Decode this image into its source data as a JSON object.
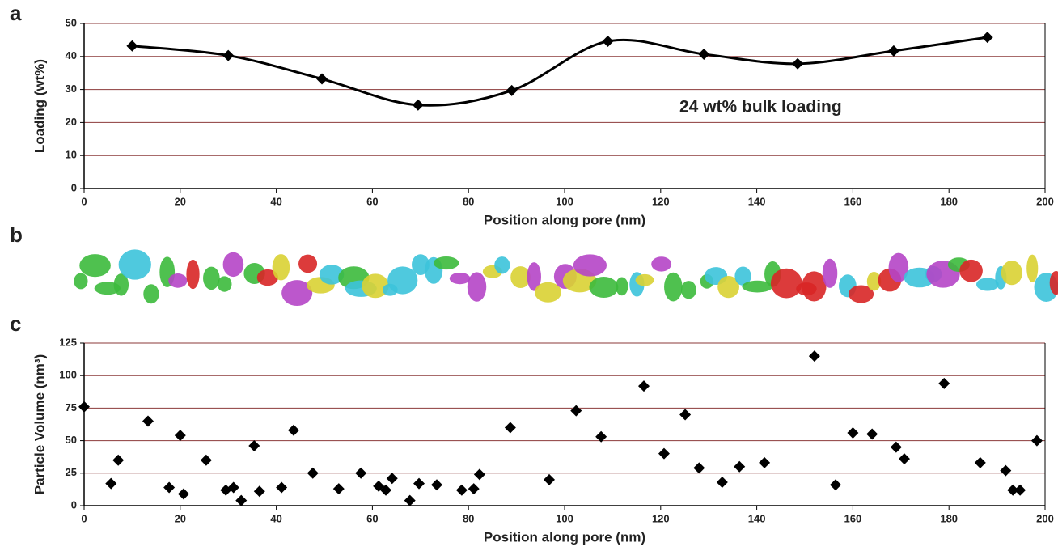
{
  "chart_data": [
    {
      "type": "line",
      "panel": "a",
      "xlabel": "Position along pore (nm)",
      "ylabel": "Loading (wt%)",
      "annotation": "24 wt% bulk loading",
      "color": "#000000",
      "grid": true,
      "smooth": true,
      "x": [
        10,
        30,
        49.5,
        69.5,
        89,
        109,
        129,
        148.5,
        168.5,
        188
      ],
      "values": [
        43.2,
        40.3,
        33.2,
        25.3,
        29.7,
        44.6,
        40.7,
        37.8,
        41.7,
        45.8
      ],
      "xlim": [
        0,
        200
      ],
      "xticks": [
        0,
        20,
        40,
        60,
        80,
        100,
        120,
        140,
        160,
        180,
        200
      ],
      "ylim": [
        0,
        50
      ],
      "yticks": [
        0,
        10,
        20,
        30,
        40,
        50
      ]
    },
    {
      "type": "scatter",
      "panel": "c",
      "xlabel": "Position along pore (nm)",
      "ylabel": "Particle Volume (nm³)",
      "color": "#000000",
      "grid": true,
      "x": [
        0,
        5.6,
        7.1,
        13.3,
        17.7,
        20,
        20.7,
        25.4,
        29.5,
        31.1,
        32.7,
        35.4,
        36.5,
        41.1,
        43.6,
        47.6,
        53,
        57.6,
        61.3,
        62.8,
        64.1,
        67.8,
        69.7,
        73.4,
        78.6,
        81.1,
        82.3,
        88.7,
        96.8,
        102.4,
        107.6,
        116.5,
        120.7,
        125.1,
        128,
        132.8,
        136.4,
        141.6,
        152,
        156.4,
        160,
        164,
        169,
        170.7,
        179,
        186.5,
        191.8,
        193.3,
        194.8,
        198.3
      ],
      "values": [
        76,
        17,
        35,
        65,
        14,
        54,
        9,
        35,
        12,
        14,
        4,
        46,
        11,
        14,
        58,
        25,
        13,
        25,
        15,
        12,
        21,
        4,
        17,
        16,
        12,
        13,
        24,
        60,
        20,
        73,
        53,
        92,
        40,
        70,
        29,
        18,
        30,
        33,
        115,
        16,
        56,
        55,
        45,
        36,
        94,
        33,
        27,
        12,
        12,
        50
      ],
      "xlim": [
        0,
        200
      ],
      "xticks": [
        0,
        20,
        40,
        60,
        80,
        100,
        120,
        140,
        160,
        180,
        200
      ],
      "ylim": [
        0,
        125
      ],
      "yticks": [
        0,
        25,
        50,
        75,
        100,
        125
      ]
    },
    {
      "type": "image",
      "panel": "b"
    }
  ]
}
